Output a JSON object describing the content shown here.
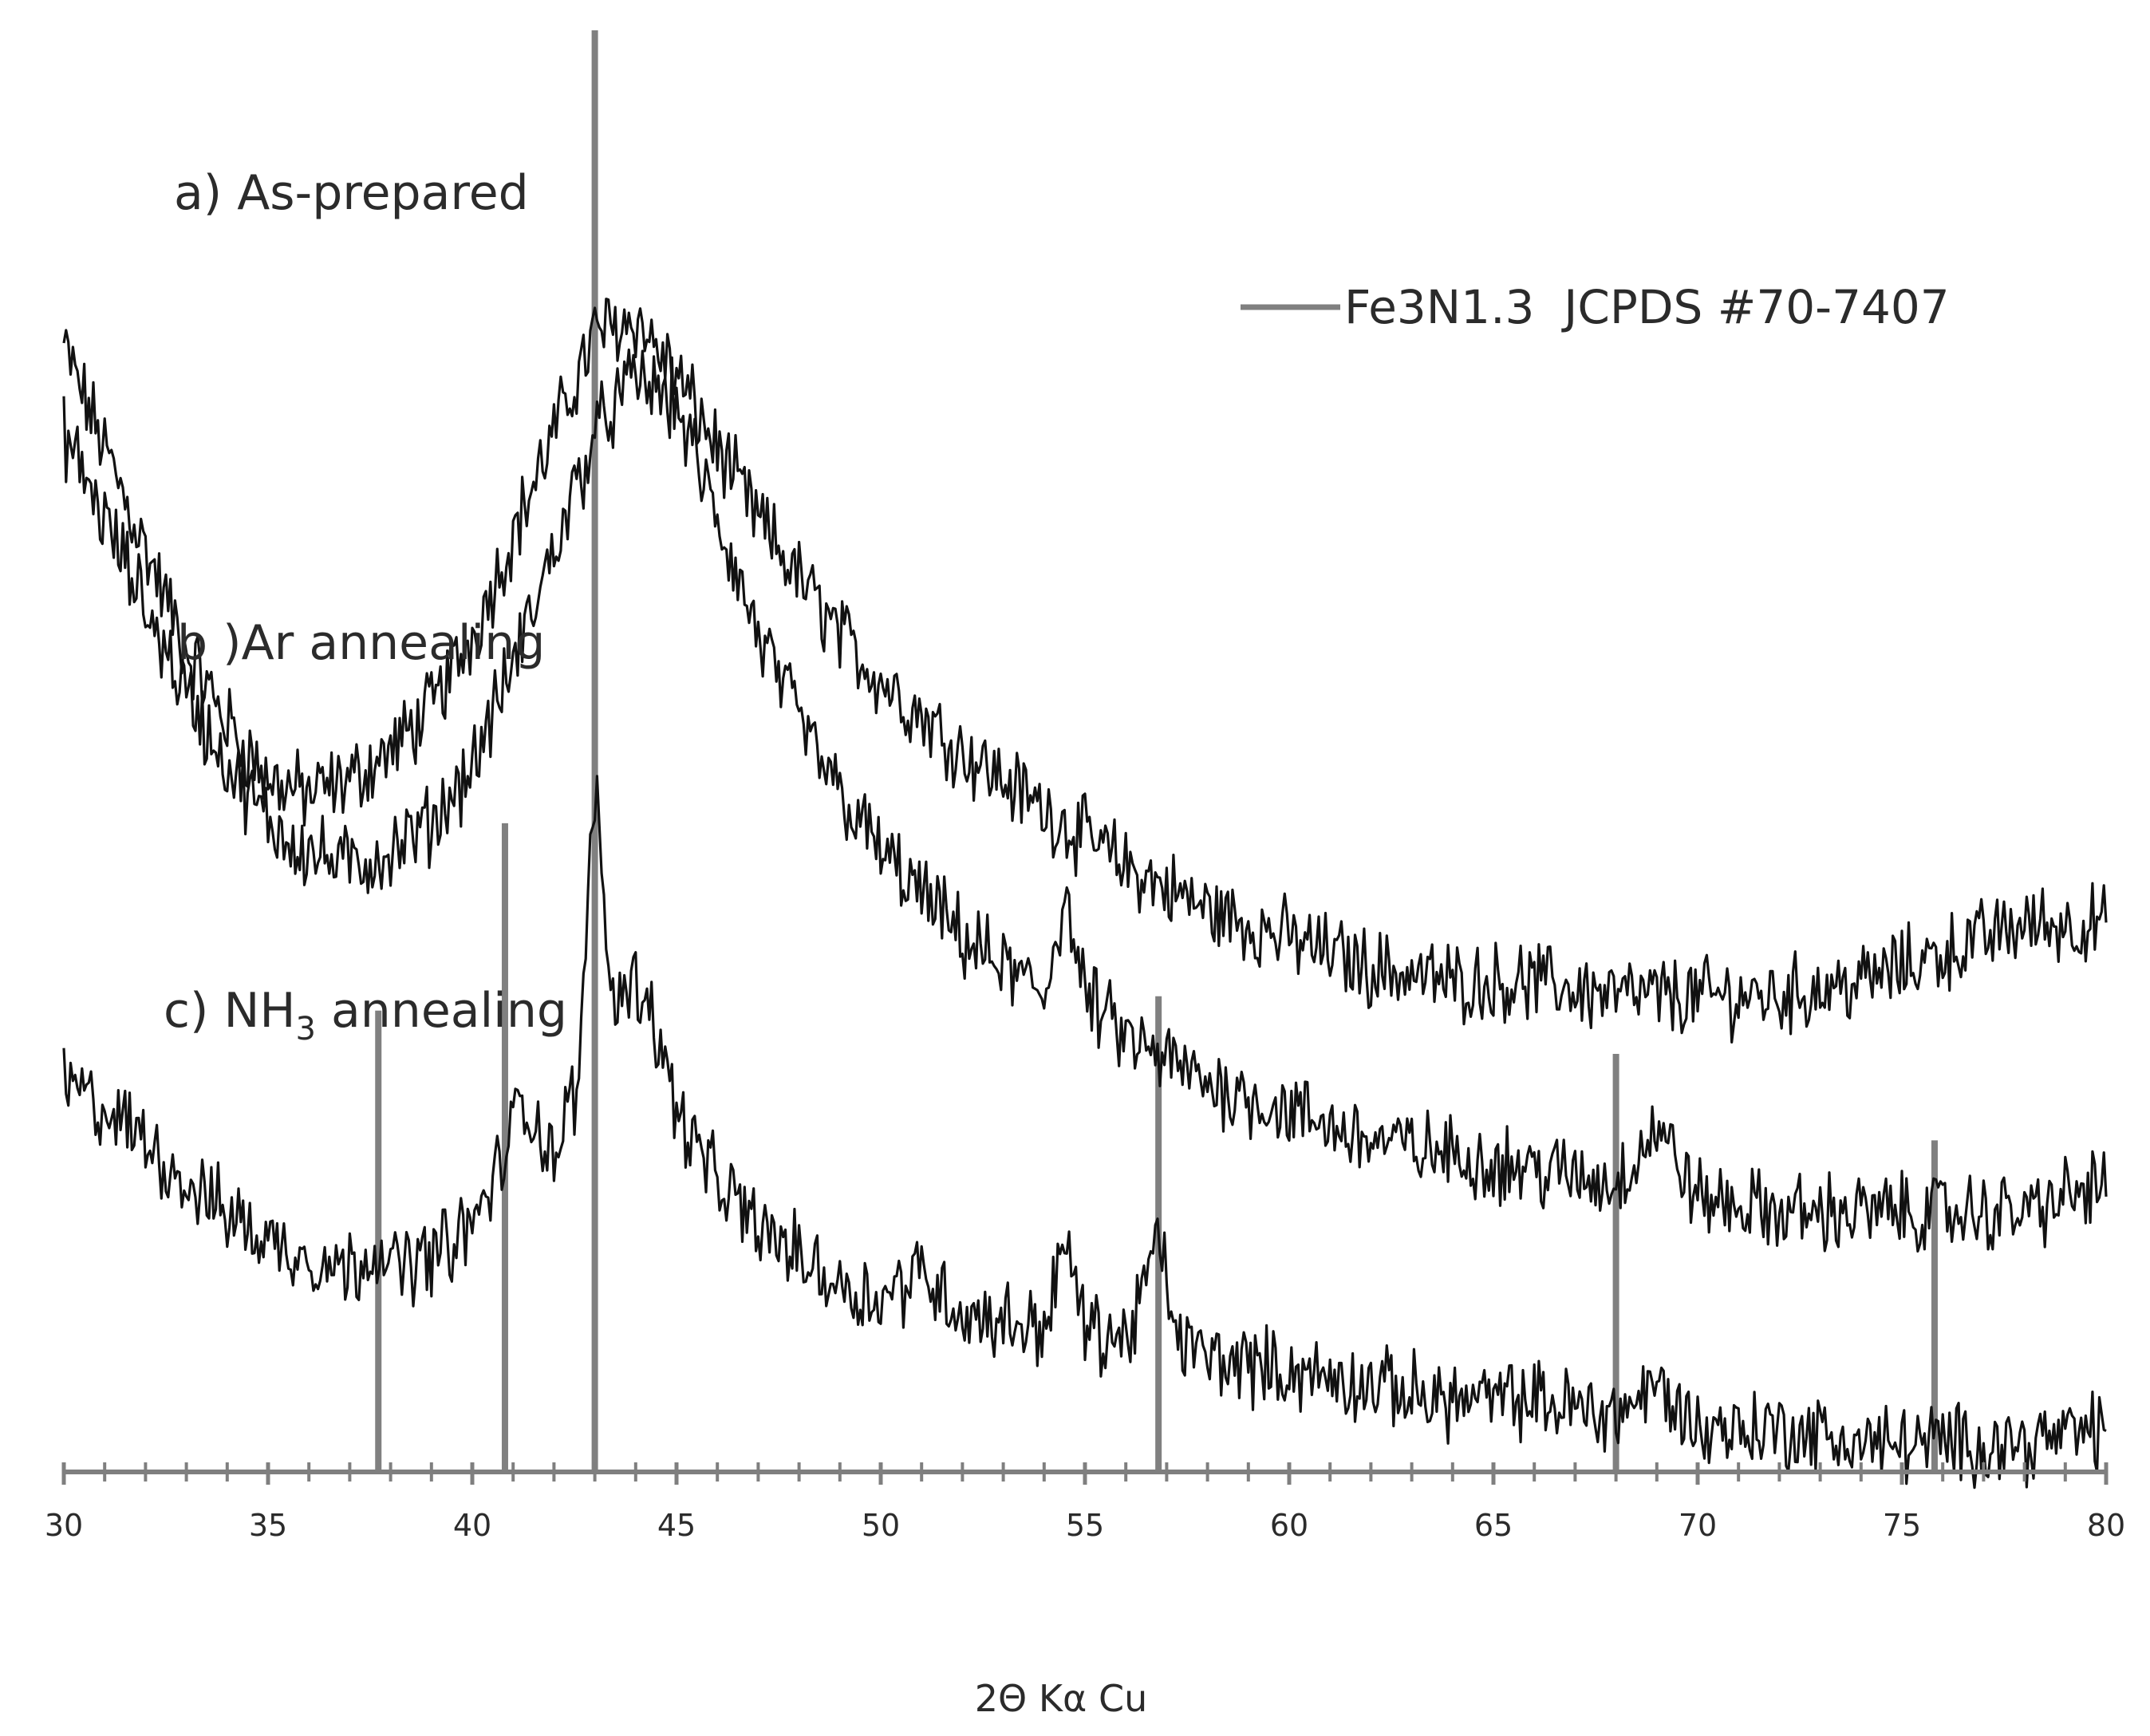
{
  "chart_data": {
    "type": "line",
    "xlabel": "2Θ Kα Cu",
    "xlim": [
      30,
      80
    ],
    "x_ticks": [
      "30",
      "35",
      "40",
      "45",
      "50",
      "55",
      "60",
      "65",
      "70",
      "75",
      "80"
    ],
    "grid": false,
    "legend": {
      "position": "top-right",
      "entry": "Fe3N1.3  JCPDS #70-7407",
      "color": "#808080"
    },
    "reference_pattern": {
      "name": "Fe3N1.3  JCPDS #70-7407",
      "color": "#808080",
      "peaks": [
        {
          "two_theta": 37.7,
          "relative_intensity": 0.32
        },
        {
          "two_theta": 40.8,
          "relative_intensity": 0.45
        },
        {
          "two_theta": 43.0,
          "relative_intensity": 1.0
        },
        {
          "two_theta": 56.8,
          "relative_intensity": 0.33
        },
        {
          "two_theta": 68.0,
          "relative_intensity": 0.29
        },
        {
          "two_theta": 75.8,
          "relative_intensity": 0.23
        }
      ]
    },
    "curve_color": "#111111",
    "series": [
      {
        "label_prefix": "a) As-prepared",
        "label_sub": "",
        "label_suffix": "",
        "x": [
          30,
          31,
          32,
          33,
          34,
          35,
          36,
          37,
          38,
          39,
          40,
          41,
          42,
          43,
          44,
          45,
          46,
          47,
          48,
          49,
          50,
          52,
          54,
          56,
          58,
          60,
          62,
          64,
          66,
          68,
          70,
          72,
          74,
          76,
          78,
          80
        ],
        "y": [
          0.78,
          0.71,
          0.64,
          0.57,
          0.52,
          0.48,
          0.47,
          0.48,
          0.5,
          0.53,
          0.58,
          0.65,
          0.72,
          0.79,
          0.8,
          0.76,
          0.71,
          0.66,
          0.62,
          0.58,
          0.55,
          0.5,
          0.46,
          0.42,
          0.39,
          0.37,
          0.35,
          0.34,
          0.34,
          0.33,
          0.33,
          0.33,
          0.34,
          0.36,
          0.38,
          0.38
        ]
      },
      {
        "label_prefix": "b )Ar annealing",
        "label_sub": "",
        "label_suffix": "",
        "x": [
          30,
          31,
          32,
          33,
          34,
          35,
          36,
          37,
          38,
          39,
          40,
          41,
          42,
          43,
          44,
          45,
          46,
          47,
          48,
          49,
          50,
          52,
          54,
          54.5,
          55,
          56,
          58,
          60,
          62,
          64,
          66,
          68,
          69,
          70,
          72,
          74,
          76,
          78,
          80
        ],
        "y": [
          0.72,
          0.66,
          0.6,
          0.54,
          0.49,
          0.45,
          0.43,
          0.42,
          0.43,
          0.45,
          0.49,
          0.56,
          0.64,
          0.72,
          0.76,
          0.74,
          0.66,
          0.58,
          0.52,
          0.47,
          0.43,
          0.37,
          0.33,
          0.4,
          0.33,
          0.3,
          0.27,
          0.25,
          0.23,
          0.22,
          0.21,
          0.2,
          0.24,
          0.19,
          0.18,
          0.18,
          0.18,
          0.18,
          0.2
        ]
      },
      {
        "label_prefix": "c) NH",
        "label_sub": "3",
        "label_suffix": " annealing",
        "x": [
          30,
          31,
          32,
          33,
          34,
          35,
          36,
          37,
          37.7,
          38,
          39,
          40,
          40.8,
          41.2,
          42,
          42.6,
          43.0,
          43.4,
          44,
          44.3,
          45,
          46,
          47,
          48,
          49,
          50,
          51,
          52,
          54,
          54.5,
          55,
          56,
          56.8,
          57.3,
          58,
          60,
          62,
          64,
          66,
          68,
          69,
          70,
          72,
          74,
          76,
          78,
          80
        ],
        "y": [
          0.27,
          0.25,
          0.23,
          0.2,
          0.18,
          0.16,
          0.15,
          0.14,
          0.16,
          0.14,
          0.15,
          0.17,
          0.22,
          0.26,
          0.22,
          0.27,
          0.48,
          0.33,
          0.34,
          0.33,
          0.25,
          0.2,
          0.17,
          0.15,
          0.13,
          0.12,
          0.14,
          0.11,
          0.1,
          0.16,
          0.1,
          0.09,
          0.16,
          0.09,
          0.08,
          0.07,
          0.06,
          0.05,
          0.05,
          0.04,
          0.06,
          0.03,
          0.03,
          0.02,
          0.02,
          0.02,
          0.03
        ]
      }
    ]
  }
}
